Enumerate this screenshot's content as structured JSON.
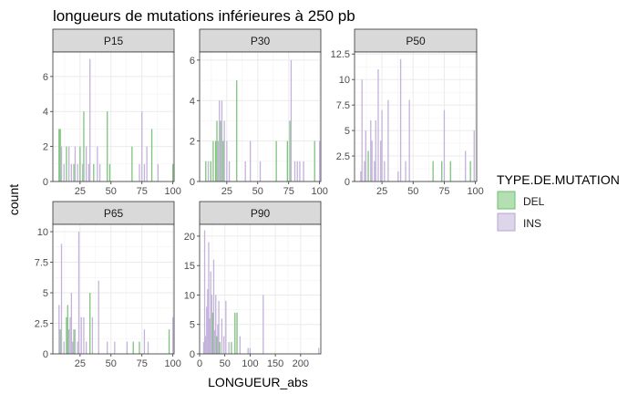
{
  "chart_data": {
    "type": "bar",
    "title": "longueurs de mutations inférieures à 250 pb",
    "xlabel": "LONGUEUR_abs",
    "ylabel": "count",
    "legend": {
      "title": "TYPE.DE.MUTATION",
      "position": "right",
      "entries": [
        {
          "label": "DEL",
          "color": "#b3dfb3",
          "stroke": "#6fbf6f"
        },
        {
          "label": "INS",
          "color": "#ddd5ea",
          "stroke": "#b6a6d2"
        }
      ]
    },
    "colors": {
      "DEL": "#7cc47c",
      "INS": "#c3b3da",
      "panel_bg": "#ffffff",
      "grid": "#ebebeb",
      "strip": "#d9d9d9"
    },
    "facets": [
      {
        "label": "P15",
        "xlim": [
          3,
          101
        ],
        "ylim": [
          0,
          7.4
        ],
        "xticks": [
          25,
          50,
          75,
          100
        ],
        "yticks": [
          0,
          2,
          4,
          6
        ],
        "bars": [
          {
            "x": 8,
            "y": 3,
            "type": "DEL"
          },
          {
            "x": 9,
            "y": 3,
            "type": "DEL"
          },
          {
            "x": 10,
            "y": 2,
            "type": "INS"
          },
          {
            "x": 12,
            "y": 1,
            "type": "INS"
          },
          {
            "x": 14,
            "y": 2,
            "type": "DEL"
          },
          {
            "x": 16,
            "y": 2,
            "type": "INS"
          },
          {
            "x": 18,
            "y": 1,
            "type": "INS"
          },
          {
            "x": 20,
            "y": 1,
            "type": "DEL"
          },
          {
            "x": 21,
            "y": 2,
            "type": "INS"
          },
          {
            "x": 23,
            "y": 1,
            "type": "INS"
          },
          {
            "x": 25,
            "y": 2,
            "type": "DEL"
          },
          {
            "x": 27,
            "y": 1,
            "type": "INS"
          },
          {
            "x": 28,
            "y": 4,
            "type": "DEL"
          },
          {
            "x": 30,
            "y": 2,
            "type": "INS"
          },
          {
            "x": 32,
            "y": 1,
            "type": "INS"
          },
          {
            "x": 33,
            "y": 7,
            "type": "INS"
          },
          {
            "x": 36,
            "y": 1,
            "type": "DEL"
          },
          {
            "x": 39,
            "y": 2,
            "type": "INS"
          },
          {
            "x": 41,
            "y": 1,
            "type": "INS"
          },
          {
            "x": 47,
            "y": 4,
            "type": "DEL"
          },
          {
            "x": 49,
            "y": 1,
            "type": "DEL"
          },
          {
            "x": 67,
            "y": 2,
            "type": "DEL"
          },
          {
            "x": 73,
            "y": 1,
            "type": "INS"
          },
          {
            "x": 75,
            "y": 4,
            "type": "INS"
          },
          {
            "x": 77,
            "y": 1,
            "type": "INS"
          },
          {
            "x": 79,
            "y": 2,
            "type": "INS"
          },
          {
            "x": 83,
            "y": 3,
            "type": "DEL"
          },
          {
            "x": 88,
            "y": 1,
            "type": "INS"
          },
          {
            "x": 100,
            "y": 1,
            "type": "DEL"
          }
        ]
      },
      {
        "label": "P30",
        "xlim": [
          3,
          101
        ],
        "ylim": [
          0,
          6.4
        ],
        "xticks": [
          25,
          50,
          75,
          100
        ],
        "yticks": [
          0,
          2,
          4,
          6
        ],
        "bars": [
          {
            "x": 8,
            "y": 1,
            "type": "DEL"
          },
          {
            "x": 10,
            "y": 1,
            "type": "INS"
          },
          {
            "x": 12,
            "y": 1,
            "type": "DEL"
          },
          {
            "x": 14,
            "y": 2,
            "type": "DEL"
          },
          {
            "x": 16,
            "y": 2,
            "type": "DEL"
          },
          {
            "x": 17,
            "y": 3,
            "type": "DEL"
          },
          {
            "x": 18,
            "y": 2,
            "type": "INS"
          },
          {
            "x": 19,
            "y": 4,
            "type": "INS"
          },
          {
            "x": 20,
            "y": 3,
            "type": "DEL"
          },
          {
            "x": 21,
            "y": 4,
            "type": "INS"
          },
          {
            "x": 22,
            "y": 2,
            "type": "DEL"
          },
          {
            "x": 23,
            "y": 3,
            "type": "INS"
          },
          {
            "x": 25,
            "y": 2,
            "type": "INS"
          },
          {
            "x": 27,
            "y": 1,
            "type": "INS"
          },
          {
            "x": 33,
            "y": 5,
            "type": "DEL"
          },
          {
            "x": 40,
            "y": 1,
            "type": "INS"
          },
          {
            "x": 44,
            "y": 2,
            "type": "INS"
          },
          {
            "x": 52,
            "y": 1,
            "type": "INS"
          },
          {
            "x": 65,
            "y": 2,
            "type": "DEL"
          },
          {
            "x": 74,
            "y": 2,
            "type": "DEL"
          },
          {
            "x": 76,
            "y": 3,
            "type": "DEL"
          },
          {
            "x": 77,
            "y": 6,
            "type": "INS"
          },
          {
            "x": 80,
            "y": 1,
            "type": "INS"
          },
          {
            "x": 82,
            "y": 1,
            "type": "INS"
          },
          {
            "x": 84,
            "y": 1,
            "type": "INS"
          },
          {
            "x": 87,
            "y": 1,
            "type": "INS"
          },
          {
            "x": 96,
            "y": 2,
            "type": "DEL"
          },
          {
            "x": 100,
            "y": 2,
            "type": "INS"
          }
        ]
      },
      {
        "label": "P50",
        "xlim": [
          3,
          101
        ],
        "ylim": [
          0,
          12.7
        ],
        "xticks": [
          25,
          50,
          75,
          100
        ],
        "yticks": [
          0,
          2.5,
          5,
          7.5,
          10,
          12.5
        ],
        "bars": [
          {
            "x": 8,
            "y": 1,
            "type": "INS"
          },
          {
            "x": 9,
            "y": 10,
            "type": "INS"
          },
          {
            "x": 11,
            "y": 2,
            "type": "INS"
          },
          {
            "x": 12,
            "y": 5,
            "type": "INS"
          },
          {
            "x": 14,
            "y": 3,
            "type": "DEL"
          },
          {
            "x": 16,
            "y": 6,
            "type": "INS"
          },
          {
            "x": 17,
            "y": 4,
            "type": "INS"
          },
          {
            "x": 19,
            "y": 2,
            "type": "INS"
          },
          {
            "x": 20,
            "y": 6,
            "type": "INS"
          },
          {
            "x": 22,
            "y": 11,
            "type": "INS"
          },
          {
            "x": 24,
            "y": 4,
            "type": "INS"
          },
          {
            "x": 25,
            "y": 7,
            "type": "INS"
          },
          {
            "x": 27,
            "y": 2,
            "type": "INS"
          },
          {
            "x": 30,
            "y": 8,
            "type": "INS"
          },
          {
            "x": 38,
            "y": 1,
            "type": "INS"
          },
          {
            "x": 40,
            "y": 12,
            "type": "INS"
          },
          {
            "x": 44,
            "y": 2,
            "type": "INS"
          },
          {
            "x": 47,
            "y": 8,
            "type": "INS"
          },
          {
            "x": 66,
            "y": 2,
            "type": "DEL"
          },
          {
            "x": 73,
            "y": 2,
            "type": "DEL"
          },
          {
            "x": 75,
            "y": 7,
            "type": "INS"
          },
          {
            "x": 80,
            "y": 2,
            "type": "DEL"
          },
          {
            "x": 92,
            "y": 3,
            "type": "INS"
          },
          {
            "x": 96,
            "y": 2,
            "type": "DEL"
          },
          {
            "x": 99,
            "y": 5,
            "type": "INS"
          }
        ]
      },
      {
        "label": "P65",
        "xlim": [
          3,
          101
        ],
        "ylim": [
          0,
          10.6
        ],
        "xticks": [
          25,
          50,
          75,
          100
        ],
        "yticks": [
          0,
          2.5,
          5,
          7.5,
          10
        ],
        "bars": [
          {
            "x": 8,
            "y": 4,
            "type": "INS"
          },
          {
            "x": 9,
            "y": 2,
            "type": "DEL"
          },
          {
            "x": 10,
            "y": 9,
            "type": "INS"
          },
          {
            "x": 12,
            "y": 1,
            "type": "INS"
          },
          {
            "x": 14,
            "y": 3,
            "type": "DEL"
          },
          {
            "x": 15,
            "y": 4,
            "type": "DEL"
          },
          {
            "x": 16,
            "y": 2,
            "type": "INS"
          },
          {
            "x": 17,
            "y": 3,
            "type": "INS"
          },
          {
            "x": 18,
            "y": 5,
            "type": "INS"
          },
          {
            "x": 19,
            "y": 1,
            "type": "INS"
          },
          {
            "x": 20,
            "y": 2,
            "type": "DEL"
          },
          {
            "x": 21,
            "y": 2,
            "type": "INS"
          },
          {
            "x": 23,
            "y": 1,
            "type": "INS"
          },
          {
            "x": 24,
            "y": 10,
            "type": "INS"
          },
          {
            "x": 26,
            "y": 3,
            "type": "INS"
          },
          {
            "x": 28,
            "y": 3,
            "type": "INS"
          },
          {
            "x": 30,
            "y": 1,
            "type": "INS"
          },
          {
            "x": 33,
            "y": 5,
            "type": "DEL"
          },
          {
            "x": 35,
            "y": 3,
            "type": "INS"
          },
          {
            "x": 40,
            "y": 6,
            "type": "INS"
          },
          {
            "x": 47,
            "y": 1,
            "type": "INS"
          },
          {
            "x": 53,
            "y": 1,
            "type": "INS"
          },
          {
            "x": 63,
            "y": 1,
            "type": "INS"
          },
          {
            "x": 68,
            "y": 1,
            "type": "DEL"
          },
          {
            "x": 73,
            "y": 1,
            "type": "DEL"
          },
          {
            "x": 77,
            "y": 2,
            "type": "INS"
          },
          {
            "x": 80,
            "y": 1,
            "type": "INS"
          },
          {
            "x": 97,
            "y": 2,
            "type": "DEL"
          },
          {
            "x": 100,
            "y": 3,
            "type": "INS"
          }
        ]
      },
      {
        "label": "P90",
        "xlim": [
          0,
          240
        ],
        "ylim": [
          0,
          22
        ],
        "xticks": [
          0,
          50,
          100,
          150,
          200
        ],
        "yticks": [
          0,
          5,
          10,
          15,
          20
        ],
        "bars": [
          {
            "x": 8,
            "y": 2,
            "type": "INS"
          },
          {
            "x": 10,
            "y": 21,
            "type": "INS"
          },
          {
            "x": 12,
            "y": 3,
            "type": "INS"
          },
          {
            "x": 14,
            "y": 8,
            "type": "INS"
          },
          {
            "x": 16,
            "y": 11,
            "type": "INS"
          },
          {
            "x": 18,
            "y": 19,
            "type": "INS"
          },
          {
            "x": 20,
            "y": 6,
            "type": "INS"
          },
          {
            "x": 22,
            "y": 14,
            "type": "INS"
          },
          {
            "x": 24,
            "y": 10,
            "type": "INS"
          },
          {
            "x": 26,
            "y": 7,
            "type": "DEL"
          },
          {
            "x": 28,
            "y": 16,
            "type": "INS"
          },
          {
            "x": 30,
            "y": 4,
            "type": "INS"
          },
          {
            "x": 32,
            "y": 10,
            "type": "INS"
          },
          {
            "x": 34,
            "y": 3,
            "type": "DEL"
          },
          {
            "x": 36,
            "y": 5,
            "type": "INS"
          },
          {
            "x": 38,
            "y": 9,
            "type": "INS"
          },
          {
            "x": 40,
            "y": 2,
            "type": "DEL"
          },
          {
            "x": 44,
            "y": 6,
            "type": "INS"
          },
          {
            "x": 48,
            "y": 3,
            "type": "INS"
          },
          {
            "x": 52,
            "y": 9,
            "type": "INS"
          },
          {
            "x": 58,
            "y": 2,
            "type": "INS"
          },
          {
            "x": 63,
            "y": 2,
            "type": "DEL"
          },
          {
            "x": 70,
            "y": 7,
            "type": "DEL"
          },
          {
            "x": 74,
            "y": 7,
            "type": "DEL"
          },
          {
            "x": 80,
            "y": 3,
            "type": "INS"
          },
          {
            "x": 96,
            "y": 1,
            "type": "INS"
          },
          {
            "x": 100,
            "y": 1,
            "type": "INS"
          },
          {
            "x": 126,
            "y": 10,
            "type": "INS"
          },
          {
            "x": 236,
            "y": 1,
            "type": "INS"
          }
        ]
      }
    ]
  }
}
